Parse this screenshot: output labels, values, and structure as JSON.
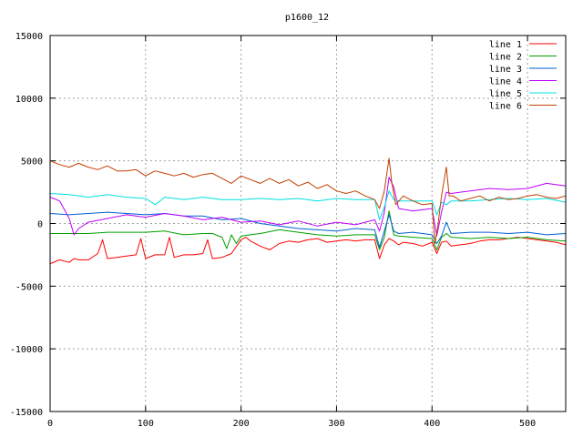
{
  "chart_data": {
    "type": "line",
    "title": "p1600_12",
    "xlabel": "",
    "ylabel": "",
    "xlim": [
      0,
      540
    ],
    "ylim": [
      -15000,
      15000
    ],
    "x_ticks": [
      0,
      100,
      200,
      300,
      400,
      500
    ],
    "y_ticks": [
      -15000,
      -10000,
      -5000,
      0,
      5000,
      10000,
      15000
    ],
    "grid": true,
    "legend_position": "top-right",
    "series": [
      {
        "name": "line 1",
        "color": "#ff0000",
        "x": [
          0,
          10,
          20,
          25,
          30,
          40,
          50,
          55,
          60,
          70,
          80,
          90,
          95,
          100,
          110,
          120,
          125,
          130,
          140,
          150,
          160,
          165,
          170,
          180,
          190,
          200,
          205,
          210,
          220,
          230,
          240,
          250,
          260,
          270,
          280,
          290,
          300,
          310,
          320,
          330,
          340,
          345,
          350,
          355,
          360,
          365,
          370,
          380,
          390,
          400,
          405,
          410,
          415,
          420,
          430,
          440,
          450,
          460,
          470,
          480,
          490,
          500,
          510,
          520,
          530,
          540
        ],
        "y": [
          -3200,
          -2900,
          -3100,
          -2800,
          -2900,
          -2900,
          -2400,
          -1300,
          -2800,
          -2700,
          -2600,
          -2500,
          -1200,
          -2800,
          -2500,
          -2500,
          -1100,
          -2700,
          -2500,
          -2500,
          -2400,
          -1300,
          -2800,
          -2700,
          -2400,
          -1300,
          -1100,
          -1400,
          -1800,
          -2100,
          -1600,
          -1400,
          -1500,
          -1300,
          -1200,
          -1500,
          -1400,
          -1300,
          -1400,
          -1300,
          -1300,
          -2800,
          -1700,
          -1200,
          -1400,
          -1700,
          -1500,
          -1600,
          -1800,
          -1500,
          -2400,
          -1500,
          -1400,
          -1800,
          -1700,
          -1600,
          -1400,
          -1300,
          -1300,
          -1200,
          -1100,
          -1200,
          -1300,
          -1400,
          -1500,
          -1700
        ]
      },
      {
        "name": "line 2",
        "color": "#00a000",
        "x": [
          0,
          20,
          40,
          60,
          80,
          100,
          120,
          140,
          160,
          170,
          180,
          185,
          190,
          195,
          200,
          220,
          240,
          260,
          280,
          300,
          320,
          340,
          345,
          350,
          355,
          360,
          365,
          380,
          400,
          405,
          410,
          415,
          420,
          440,
          460,
          480,
          500,
          520,
          540
        ],
        "y": [
          -800,
          -800,
          -800,
          -700,
          -700,
          -700,
          -600,
          -900,
          -800,
          -800,
          -1100,
          -2000,
          -900,
          -1600,
          -1000,
          -800,
          -500,
          -700,
          -900,
          -1000,
          -900,
          -900,
          -2100,
          -1100,
          1000,
          -900,
          -1000,
          -1100,
          -1200,
          -2100,
          -1100,
          -800,
          -1100,
          -1200,
          -1100,
          -1200,
          -1100,
          -1300,
          -1400
        ]
      },
      {
        "name": "line 3",
        "color": "#0060d0",
        "x": [
          0,
          20,
          40,
          60,
          80,
          100,
          120,
          140,
          160,
          180,
          200,
          220,
          240,
          260,
          280,
          300,
          320,
          340,
          345,
          350,
          355,
          360,
          365,
          380,
          400,
          405,
          410,
          415,
          420,
          440,
          460,
          480,
          500,
          520,
          540
        ],
        "y": [
          800,
          700,
          800,
          900,
          800,
          700,
          800,
          600,
          600,
          300,
          400,
          0,
          -200,
          -400,
          -500,
          -600,
          -400,
          -500,
          -1900,
          -600,
          700,
          -600,
          -800,
          -700,
          -900,
          -1600,
          -1000,
          100,
          -800,
          -700,
          -700,
          -800,
          -700,
          -900,
          -800
        ]
      },
      {
        "name": "line 4",
        "color": "#c000ff",
        "x": [
          0,
          10,
          20,
          25,
          30,
          40,
          60,
          80,
          100,
          120,
          140,
          160,
          180,
          200,
          220,
          240,
          260,
          280,
          300,
          320,
          340,
          345,
          350,
          355,
          360,
          365,
          380,
          400,
          405,
          410,
          415,
          420,
          440,
          460,
          480,
          500,
          520,
          540
        ],
        "y": [
          2100,
          1800,
          400,
          -900,
          -400,
          100,
          400,
          700,
          500,
          800,
          600,
          300,
          500,
          100,
          200,
          -100,
          200,
          -200,
          100,
          -100,
          300,
          -600,
          900,
          3700,
          2900,
          1200,
          1000,
          1200,
          -1000,
          900,
          2500,
          2400,
          2600,
          2800,
          2700,
          2800,
          3200,
          3000
        ]
      },
      {
        "name": "line 5",
        "color": "#00e0e0",
        "x": [
          0,
          20,
          40,
          60,
          80,
          100,
          110,
          120,
          140,
          160,
          180,
          200,
          220,
          240,
          260,
          280,
          300,
          320,
          340,
          345,
          350,
          355,
          360,
          365,
          380,
          400,
          405,
          410,
          415,
          420,
          440,
          460,
          480,
          500,
          520,
          540
        ],
        "y": [
          2400,
          2300,
          2100,
          2300,
          2100,
          2000,
          1500,
          2100,
          1900,
          2100,
          1900,
          1900,
          2000,
          1900,
          2000,
          1800,
          2000,
          1900,
          1900,
          300,
          1300,
          2600,
          1900,
          1800,
          1800,
          1800,
          700,
          1700,
          1500,
          1800,
          1800,
          1900,
          2000,
          1900,
          2000,
          1700
        ]
      },
      {
        "name": "line 6",
        "color": "#c04000",
        "x": [
          0,
          10,
          20,
          30,
          40,
          50,
          60,
          70,
          80,
          90,
          100,
          110,
          120,
          130,
          140,
          150,
          160,
          170,
          180,
          190,
          200,
          210,
          220,
          230,
          240,
          250,
          260,
          270,
          280,
          290,
          300,
          310,
          320,
          330,
          340,
          345,
          350,
          355,
          358,
          362,
          370,
          380,
          390,
          400,
          403,
          406,
          410,
          415,
          418,
          422,
          430,
          440,
          450,
          460,
          470,
          480,
          490,
          500,
          510,
          520,
          530,
          540
        ],
        "y": [
          5000,
          4700,
          4500,
          4800,
          4500,
          4300,
          4600,
          4200,
          4200,
          4300,
          3800,
          4200,
          4000,
          3800,
          4000,
          3700,
          3900,
          4000,
          3600,
          3200,
          3800,
          3500,
          3200,
          3600,
          3200,
          3500,
          3000,
          3300,
          2800,
          3100,
          2600,
          2400,
          2600,
          2200,
          1900,
          1200,
          2600,
          5200,
          3200,
          1500,
          2200,
          1800,
          1500,
          1600,
          -1600,
          -300,
          2200,
          4500,
          2200,
          2200,
          1800,
          2000,
          2200,
          1800,
          2100,
          1900,
          2000,
          2200,
          2300,
          2100,
          2000,
          2200
        ]
      }
    ]
  }
}
